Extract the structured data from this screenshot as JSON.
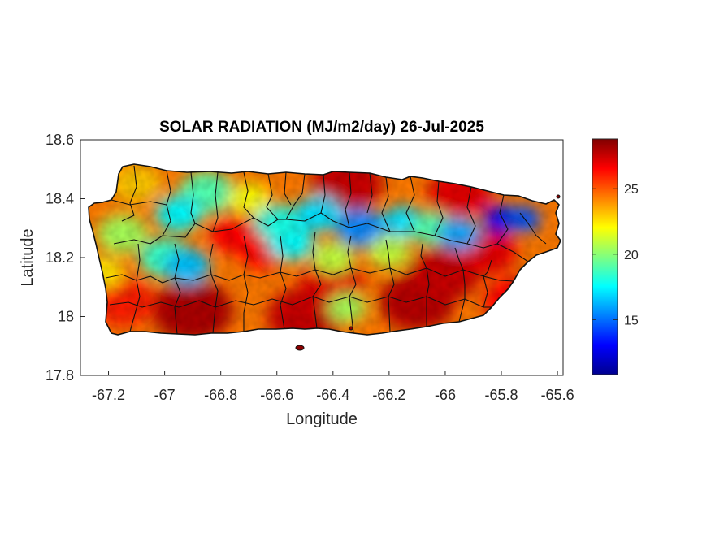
{
  "chart_data": {
    "type": "heatmap",
    "title": "SOLAR RADIATION (MJ/m2/day) 26-Jul-2025",
    "xlabel": "Longitude",
    "ylabel": "Latitude",
    "xlim": [
      -67.3,
      -65.58
    ],
    "ylim": [
      17.8,
      18.6
    ],
    "xticks": [
      -67.2,
      -67,
      -66.8,
      -66.6,
      -66.4,
      -66.2,
      -66,
      -65.8,
      -65.6
    ],
    "xtick_labels": [
      "-67.2",
      "-67",
      "-66.8",
      "-66.6",
      "-66.4",
      "-66.2",
      "-66",
      "-65.8",
      "-65.6"
    ],
    "yticks": [
      17.8,
      18,
      18.2,
      18.4,
      18.6
    ],
    "ytick_labels": [
      "17.8",
      "18",
      "18.2",
      "18.4",
      "18.6"
    ],
    "colormap": "jet",
    "clim": [
      10.8,
      28.8
    ],
    "colorbar_ticks": [
      15,
      20,
      25
    ],
    "colorbar_tick_labels": [
      "15",
      "20",
      "25"
    ],
    "grid": false,
    "region_outline": "Puerto Rico municipalities",
    "value_hotspots": [
      {
        "lon": -66.35,
        "lat": 18.45,
        "value": 27.5
      },
      {
        "lon": -65.95,
        "lat": 18.42,
        "value": 27.0
      },
      {
        "lon": -66.9,
        "lat": 18.02,
        "value": 28.0
      },
      {
        "lon": -66.5,
        "lat": 18.0,
        "value": 27.5
      },
      {
        "lon": -66.1,
        "lat": 18.05,
        "value": 27.8
      },
      {
        "lon": -65.75,
        "lat": 18.05,
        "value": 26.5
      },
      {
        "lon": -66.4,
        "lat": 18.12,
        "value": 27.0
      },
      {
        "lon": -66.0,
        "lat": 18.15,
        "value": 27.5
      },
      {
        "lon": -65.85,
        "lat": 18.22,
        "value": 27.0
      },
      {
        "lon": -66.65,
        "lat": 18.22,
        "value": 26.5
      },
      {
        "lon": -66.75,
        "lat": 18.28,
        "value": 26.5
      },
      {
        "lon": -67.15,
        "lat": 18.05,
        "value": 26.0
      },
      {
        "lon": -66.85,
        "lat": 18.42,
        "value": 19.0
      },
      {
        "lon": -66.95,
        "lat": 18.35,
        "value": 17.5
      },
      {
        "lon": -67.0,
        "lat": 18.2,
        "value": 18.5
      },
      {
        "lon": -66.92,
        "lat": 18.17,
        "value": 16.5
      },
      {
        "lon": -67.15,
        "lat": 18.28,
        "value": 20.5
      },
      {
        "lon": -66.55,
        "lat": 18.25,
        "value": 17.5
      },
      {
        "lon": -66.6,
        "lat": 18.32,
        "value": 18.0
      },
      {
        "lon": -66.45,
        "lat": 18.35,
        "value": 17.0
      },
      {
        "lon": -66.3,
        "lat": 18.3,
        "value": 15.5
      },
      {
        "lon": -66.15,
        "lat": 18.32,
        "value": 17.0
      },
      {
        "lon": -66.05,
        "lat": 18.3,
        "value": 19.0
      },
      {
        "lon": -65.95,
        "lat": 18.28,
        "value": 16.0
      },
      {
        "lon": -65.8,
        "lat": 18.33,
        "value": 12.5
      },
      {
        "lon": -65.72,
        "lat": 18.33,
        "value": 14.5
      },
      {
        "lon": -66.4,
        "lat": 18.2,
        "value": 21.0
      },
      {
        "lon": -66.2,
        "lat": 18.22,
        "value": 21.0
      },
      {
        "lon": -66.35,
        "lat": 18.03,
        "value": 20.5
      },
      {
        "lon": -67.1,
        "lat": 18.45,
        "value": 23.0
      },
      {
        "lon": -66.7,
        "lat": 18.4,
        "value": 22.0
      },
      {
        "lon": -67.22,
        "lat": 18.15,
        "value": 22.5
      }
    ]
  }
}
